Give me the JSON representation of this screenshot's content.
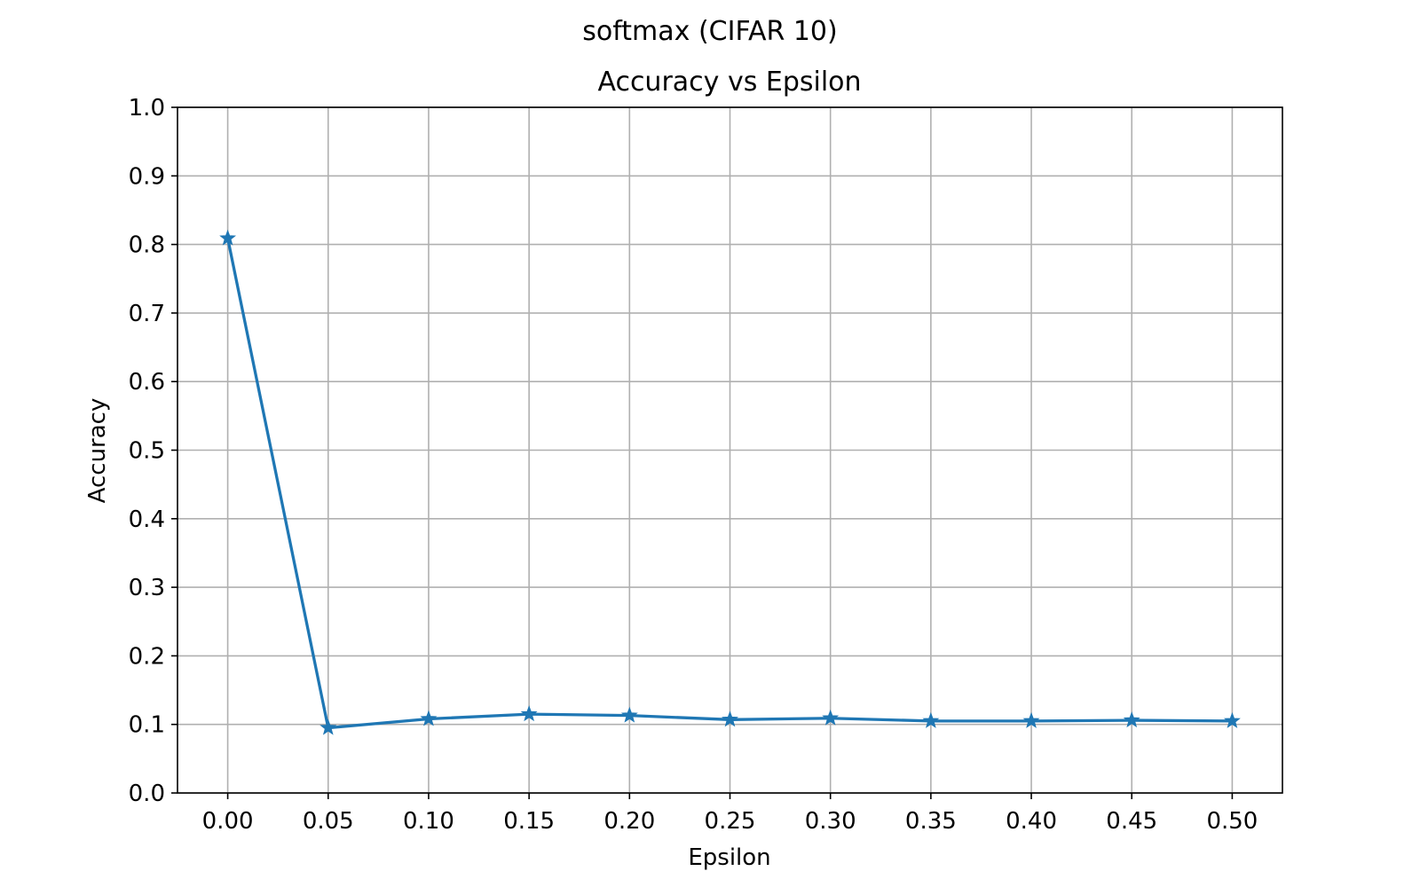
{
  "chart_data": {
    "type": "line",
    "suptitle": "softmax (CIFAR 10)",
    "title": "Accuracy vs Epsilon",
    "xlabel": "Epsilon",
    "ylabel": "Accuracy",
    "xlim": [
      -0.025,
      0.525
    ],
    "ylim": [
      0.0,
      1.0
    ],
    "grid": true,
    "xticks": [
      0.0,
      0.05,
      0.1,
      0.15,
      0.2,
      0.25,
      0.3,
      0.35,
      0.4,
      0.45,
      0.5
    ],
    "xtick_labels": [
      "0.00",
      "0.05",
      "0.10",
      "0.15",
      "0.20",
      "0.25",
      "0.30",
      "0.35",
      "0.40",
      "0.45",
      "0.50"
    ],
    "yticks": [
      0.0,
      0.1,
      0.2,
      0.3,
      0.4,
      0.5,
      0.6,
      0.7,
      0.8,
      0.9,
      1.0
    ],
    "ytick_labels": [
      "0.0",
      "0.1",
      "0.2",
      "0.3",
      "0.4",
      "0.5",
      "0.6",
      "0.7",
      "0.8",
      "0.9",
      "1.0"
    ],
    "series": [
      {
        "color": "#1f77b4",
        "marker": "star",
        "x": [
          0.0,
          0.05,
          0.1,
          0.15,
          0.2,
          0.25,
          0.3,
          0.35,
          0.4,
          0.45,
          0.5
        ],
        "y": [
          0.809,
          0.095,
          0.108,
          0.115,
          0.113,
          0.107,
          0.109,
          0.105,
          0.105,
          0.106,
          0.105
        ]
      }
    ]
  }
}
